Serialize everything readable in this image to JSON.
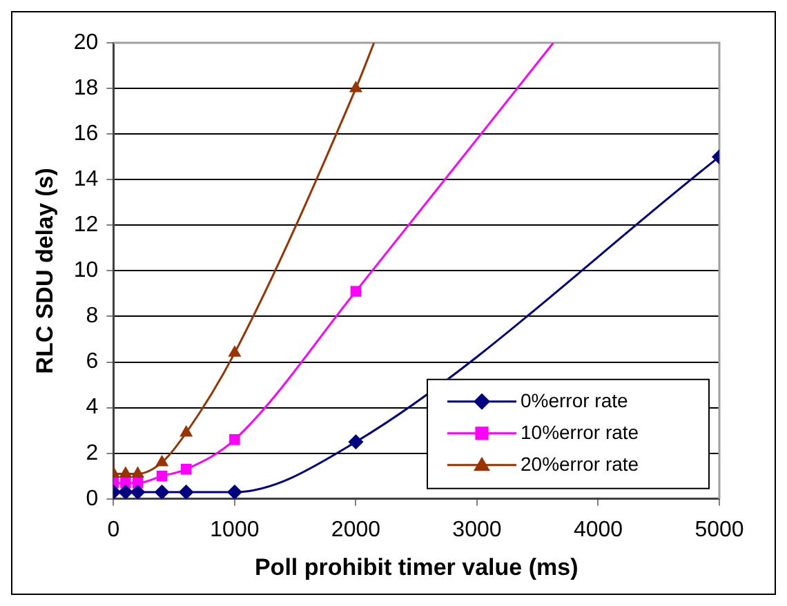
{
  "chart_data": {
    "type": "line",
    "xlabel": "Poll prohibit timer value (ms)",
    "ylabel": "RLC SDU delay (s)",
    "xlim": [
      0,
      5000
    ],
    "xticks": [
      0,
      1000,
      2000,
      3000,
      4000,
      5000
    ],
    "ylim": [
      0,
      20
    ],
    "yticks": [
      0,
      2,
      4,
      6,
      8,
      10,
      12,
      14,
      16,
      18,
      20
    ],
    "grid": "y",
    "legend": "bottom right",
    "series": [
      {
        "name": "0%error rate",
        "color": "#000080",
        "marker": "diamond",
        "x": [
          0,
          100,
          200,
          400,
          600,
          1000,
          2000,
          5000
        ],
        "values": [
          0.3,
          0.3,
          0.3,
          0.3,
          0.3,
          0.3,
          2.5,
          15
        ]
      },
      {
        "name": "10%error rate",
        "color": "#ff00ff",
        "marker": "square",
        "x": [
          0,
          100,
          200,
          400,
          600,
          1000,
          2000,
          3630
        ],
        "values": [
          0.7,
          0.7,
          0.7,
          1.0,
          1.3,
          2.6,
          9.1,
          20
        ]
      },
      {
        "name": "20%error rate",
        "color": "#993300",
        "marker": "triangle",
        "x": [
          0,
          100,
          200,
          400,
          600,
          1000,
          2000,
          2150
        ],
        "values": [
          1.1,
          1.1,
          1.1,
          1.6,
          2.9,
          6.4,
          18,
          20
        ]
      }
    ]
  }
}
